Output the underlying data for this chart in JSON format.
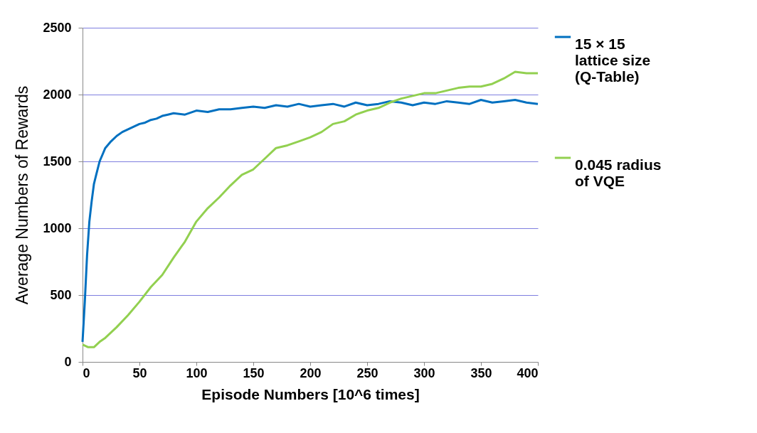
{
  "chart_data": {
    "type": "line",
    "xlabel": "Episode Numbers  [10^6 times]",
    "ylabel": "Average Numbers of Rewards",
    "xlim": [
      0,
      400
    ],
    "xticks": [
      0,
      50,
      100,
      150,
      200,
      250,
      300,
      350,
      400
    ],
    "ylim": [
      0,
      2500
    ],
    "yticks": [
      0,
      500,
      1000,
      1500,
      2000,
      2500
    ],
    "grid": "y",
    "legend": "right",
    "line_style": "solid",
    "marker": "none",
    "series": [
      {
        "name": "15 × 15 lattice size (Q-Table)",
        "color": "#0070c0",
        "x": [
          0,
          2,
          4,
          6,
          8,
          10,
          12,
          15,
          18,
          20,
          25,
          30,
          35,
          40,
          45,
          50,
          55,
          60,
          65,
          70,
          75,
          80,
          90,
          100,
          110,
          120,
          130,
          140,
          150,
          160,
          170,
          180,
          190,
          200,
          210,
          220,
          230,
          240,
          250,
          260,
          270,
          280,
          290,
          300,
          310,
          320,
          330,
          340,
          350,
          360,
          370,
          380,
          390,
          400
        ],
        "values": [
          150,
          450,
          800,
          1050,
          1200,
          1330,
          1400,
          1500,
          1560,
          1600,
          1650,
          1690,
          1720,
          1740,
          1760,
          1780,
          1790,
          1810,
          1820,
          1840,
          1850,
          1860,
          1850,
          1880,
          1870,
          1890,
          1890,
          1900,
          1910,
          1900,
          1920,
          1910,
          1930,
          1910,
          1920,
          1930,
          1910,
          1940,
          1920,
          1930,
          1950,
          1940,
          1920,
          1940,
          1930,
          1950,
          1940,
          1930,
          1960,
          1940,
          1950,
          1960,
          1940,
          1930
        ]
      },
      {
        "name": "0.045 radius of VQE",
        "color": "#92d050",
        "x": [
          0,
          5,
          10,
          15,
          20,
          25,
          30,
          40,
          50,
          60,
          70,
          80,
          90,
          100,
          110,
          120,
          130,
          140,
          150,
          160,
          170,
          180,
          190,
          200,
          210,
          220,
          230,
          240,
          250,
          260,
          270,
          280,
          290,
          300,
          310,
          320,
          330,
          340,
          350,
          360,
          370,
          380,
          390,
          400
        ],
        "values": [
          130,
          110,
          110,
          150,
          180,
          220,
          260,
          350,
          450,
          560,
          650,
          780,
          900,
          1050,
          1150,
          1230,
          1320,
          1400,
          1440,
          1520,
          1600,
          1620,
          1650,
          1680,
          1720,
          1780,
          1800,
          1850,
          1880,
          1900,
          1940,
          1970,
          1990,
          2010,
          2010,
          2030,
          2050,
          2060,
          2060,
          2080,
          2120,
          2170,
          2160,
          2160
        ]
      }
    ]
  }
}
